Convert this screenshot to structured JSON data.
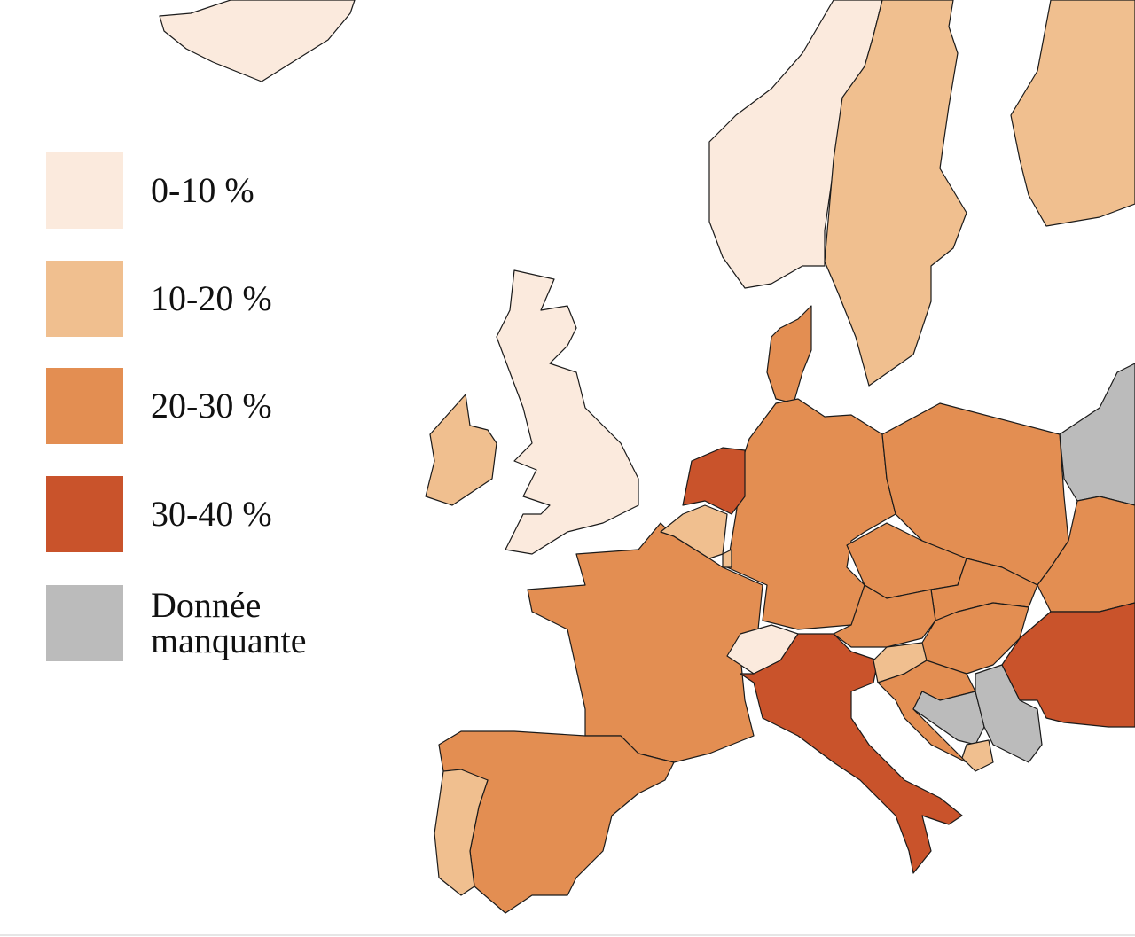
{
  "legend": {
    "items": [
      {
        "label": "0-10 %",
        "color": "#fbeadd"
      },
      {
        "label": "10-20 %",
        "color": "#f0bf8f"
      },
      {
        "label": "20-30 %",
        "color": "#e38e52"
      },
      {
        "label": "30-40 %",
        "color": "#c9532b"
      },
      {
        "label": "Donnée manquante",
        "color": "#bbbbbb"
      }
    ]
  }
}
